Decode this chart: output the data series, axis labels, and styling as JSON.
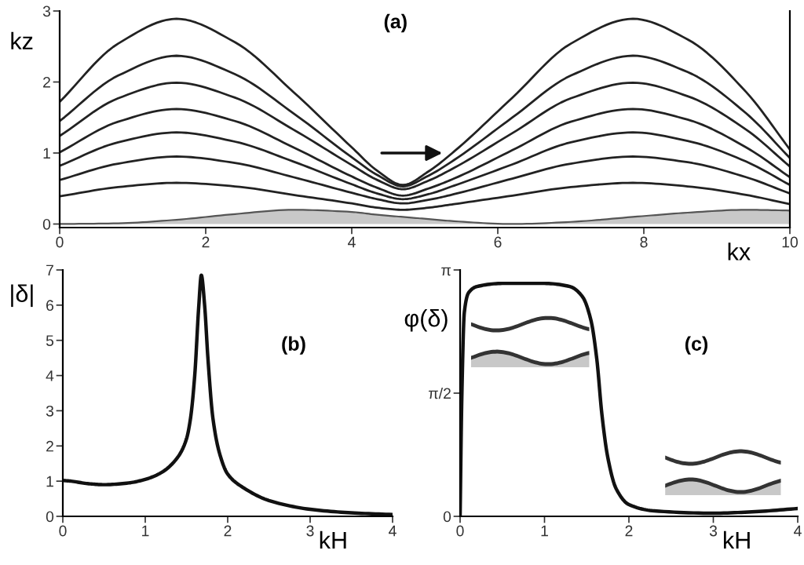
{
  "chart_data": [
    {
      "type": "line",
      "title": "(a)",
      "xlabel": "kx",
      "ylabel": "kz",
      "xlim": [
        0,
        10
      ],
      "ylim": [
        -0.05,
        3
      ],
      "xticks": [
        0,
        2,
        4,
        6,
        8,
        10
      ],
      "yticks": [
        0,
        1,
        2,
        3
      ],
      "grid": false,
      "legend": false,
      "marker": "none",
      "line_style": "solid",
      "x": [
        0,
        0.8,
        1.6,
        2.4,
        3.2,
        4.0,
        4.35,
        4.7,
        5.05,
        5.4,
        6.2,
        7.0,
        7.85,
        8.6,
        9.4,
        10
      ],
      "series": [
        {
          "color": "#222222",
          "values": [
            1.72,
            2.54,
            2.89,
            2.56,
            1.86,
            1.08,
            0.75,
            0.55,
            0.74,
            1.02,
            1.78,
            2.54,
            2.89,
            2.6,
            1.86,
            1.05
          ]
        },
        {
          "color": "#222222",
          "values": [
            1.45,
            2.09,
            2.37,
            2.11,
            1.56,
            0.94,
            0.69,
            0.53,
            0.68,
            0.9,
            1.5,
            2.09,
            2.37,
            2.14,
            1.56,
            0.93
          ]
        },
        {
          "color": "#222222",
          "values": [
            1.24,
            1.77,
            1.99,
            1.78,
            1.33,
            0.83,
            0.62,
            0.49,
            0.61,
            0.79,
            1.28,
            1.77,
            1.99,
            1.8,
            1.33,
            0.81
          ]
        },
        {
          "color": "#222222",
          "values": [
            1.01,
            1.44,
            1.62,
            1.45,
            1.08,
            0.67,
            0.51,
            0.4,
            0.5,
            0.64,
            1.04,
            1.44,
            1.62,
            1.47,
            1.08,
            0.66
          ]
        },
        {
          "color": "#222222",
          "values": [
            0.82,
            1.15,
            1.29,
            1.16,
            0.88,
            0.56,
            0.43,
            0.35,
            0.42,
            0.54,
            0.84,
            1.15,
            1.29,
            1.17,
            0.88,
            0.55
          ]
        },
        {
          "color": "#222222",
          "values": [
            0.62,
            0.85,
            0.95,
            0.86,
            0.66,
            0.44,
            0.35,
            0.29,
            0.34,
            0.42,
            0.64,
            0.85,
            0.95,
            0.87,
            0.66,
            0.43
          ]
        },
        {
          "color": "#222222",
          "values": [
            0.39,
            0.52,
            0.58,
            0.53,
            0.41,
            0.29,
            0.23,
            0.2,
            0.23,
            0.28,
            0.4,
            0.52,
            0.58,
            0.53,
            0.41,
            0.28
          ]
        },
        {
          "type": "area",
          "color": "#c8c8c8",
          "values": [
            0,
            0.01,
            0.06,
            0.14,
            0.2,
            0.17,
            0.13,
            0.1,
            0.07,
            0.04,
            0.0,
            0.03,
            0.1,
            0.16,
            0.2,
            0.19
          ]
        }
      ]
    },
    {
      "type": "line",
      "title": "(b)",
      "xlabel": "kH",
      "ylabel": "|δ|",
      "xlim": [
        0,
        4
      ],
      "ylim": [
        0,
        7
      ],
      "xticks": [
        0,
        1,
        2,
        3,
        4
      ],
      "yticks": [
        0,
        1,
        2,
        3,
        4,
        5,
        6,
        7
      ],
      "grid": false,
      "legend": false,
      "marker": "none",
      "line_style": "solid",
      "x": [
        0,
        0.1,
        0.3,
        0.5,
        0.8,
        1.0,
        1.2,
        1.4,
        1.5,
        1.55,
        1.6,
        1.65,
        1.68,
        1.72,
        1.76,
        1.82,
        1.9,
        2.0,
        2.2,
        2.5,
        3.0,
        3.5,
        4.0
      ],
      "series": [
        {
          "color": "#111111",
          "values": [
            1.02,
            1.0,
            0.93,
            0.9,
            0.95,
            1.05,
            1.25,
            1.7,
            2.2,
            2.8,
            4.0,
            6.0,
            6.85,
            6.0,
            4.5,
            2.8,
            1.8,
            1.2,
            0.8,
            0.45,
            0.2,
            0.1,
            0.05
          ]
        }
      ]
    },
    {
      "type": "line",
      "title": "(c)",
      "xlabel": "kH",
      "ylabel": "φ(δ)",
      "xlim": [
        0,
        4
      ],
      "ylim": [
        0,
        3.1416
      ],
      "xticks": [
        0,
        1,
        2,
        3,
        4
      ],
      "yticks": [
        0,
        {
          "value": 1.5708,
          "label": "π/2"
        },
        {
          "value": 3.1416,
          "label": "π"
        }
      ],
      "grid": false,
      "legend": false,
      "marker": "none",
      "line_style": "solid",
      "x": [
        0,
        0.02,
        0.05,
        0.1,
        0.2,
        0.5,
        1.0,
        1.3,
        1.45,
        1.55,
        1.62,
        1.68,
        1.75,
        1.85,
        2.0,
        2.3,
        3.0,
        3.5,
        4.0
      ],
      "series": [
        {
          "color": "#111111",
          "values": [
            0,
            1.5,
            2.6,
            2.85,
            2.93,
            2.97,
            2.97,
            2.93,
            2.8,
            2.5,
            2.0,
            1.3,
            0.75,
            0.35,
            0.15,
            0.07,
            0.04,
            0.06,
            0.1
          ]
        }
      ]
    }
  ]
}
